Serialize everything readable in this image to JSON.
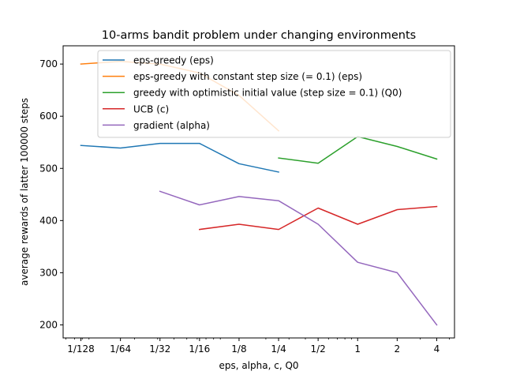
{
  "chart_data": {
    "type": "line",
    "title": "10-arms bandit problem under changing environments",
    "xlabel": "eps, alpha, c, Q0",
    "ylabel": "average rewards of latter 100000 steps",
    "x_scale": "log2",
    "x_ticks": [
      {
        "value": 0.0078125,
        "label": "1/128"
      },
      {
        "value": 0.015625,
        "label": "1/64"
      },
      {
        "value": 0.03125,
        "label": "1/32"
      },
      {
        "value": 0.0625,
        "label": "1/16"
      },
      {
        "value": 0.125,
        "label": "1/8"
      },
      {
        "value": 0.25,
        "label": "1/4"
      },
      {
        "value": 0.5,
        "label": "1/2"
      },
      {
        "value": 1,
        "label": "1"
      },
      {
        "value": 2,
        "label": "2"
      },
      {
        "value": 4,
        "label": "4"
      }
    ],
    "y_ticks": [
      200,
      300,
      400,
      500,
      600,
      700
    ],
    "ylim": [
      175,
      735
    ],
    "grid": false,
    "legend_position": "top-right",
    "series": [
      {
        "name": "eps-greedy (eps)",
        "color": "#1f77b4",
        "x": [
          0.0078125,
          0.015625,
          0.03125,
          0.0625,
          0.125,
          0.25
        ],
        "y": [
          544,
          539,
          548,
          548,
          509,
          493
        ]
      },
      {
        "name": "eps-greedy with constant step size (= 0.1) (eps)",
        "color": "#ff7f0e",
        "x": [
          0.0078125,
          0.015625,
          0.03125,
          0.0625,
          0.125,
          0.25
        ],
        "y": [
          700,
          705,
          700,
          683,
          640,
          572
        ]
      },
      {
        "name": "greedy with optimistic initial value (step size = 0.1) (Q0)",
        "color": "#2ca02c",
        "x": [
          0.25,
          0.5,
          1,
          2,
          4
        ],
        "y": [
          520,
          510,
          561,
          542,
          518
        ]
      },
      {
        "name": "UCB (c)",
        "color": "#d62728",
        "x": [
          0.0625,
          0.125,
          0.25,
          0.5,
          1,
          2,
          4
        ],
        "y": [
          383,
          393,
          383,
          424,
          393,
          421,
          427
        ]
      },
      {
        "name": "gradient (alpha)",
        "color": "#9467bd",
        "x": [
          0.03125,
          0.0625,
          0.125,
          0.25,
          0.5,
          1,
          2,
          4
        ],
        "y": [
          456,
          430,
          446,
          438,
          393,
          320,
          300,
          200
        ]
      }
    ]
  }
}
